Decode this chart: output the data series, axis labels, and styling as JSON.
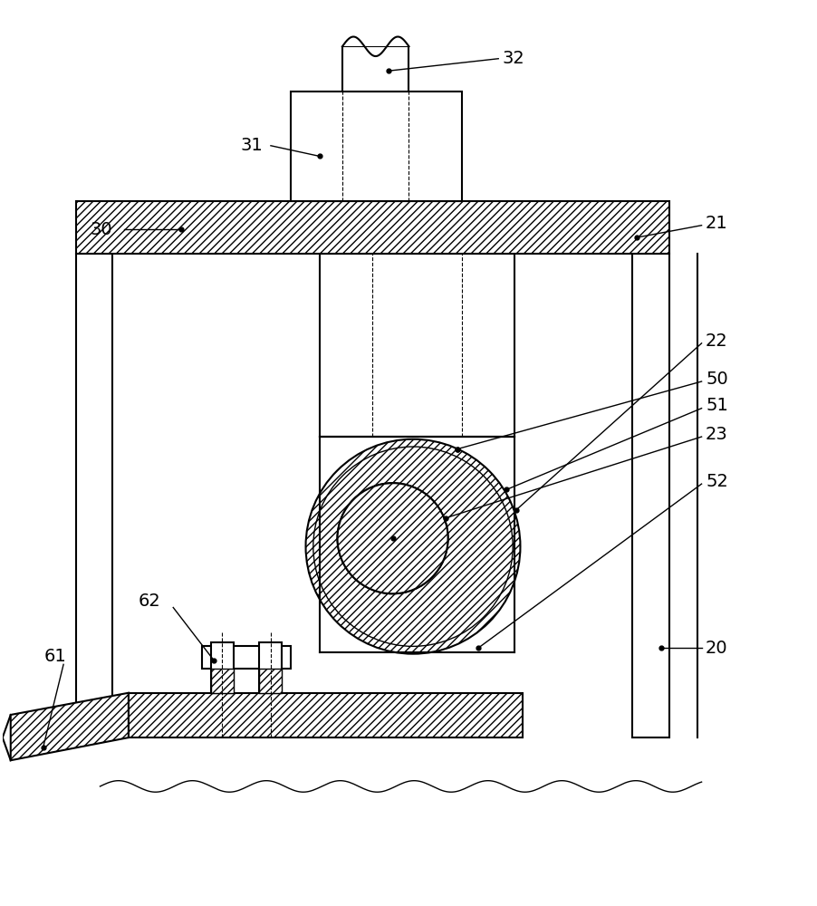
{
  "bg_color": "#ffffff",
  "line_color": "#000000",
  "fig_width": 9.03,
  "fig_height": 10.0,
  "lw": 1.5,
  "lw_thin": 1.0,
  "lw_dashed": 0.8,
  "fs_label": 14
}
